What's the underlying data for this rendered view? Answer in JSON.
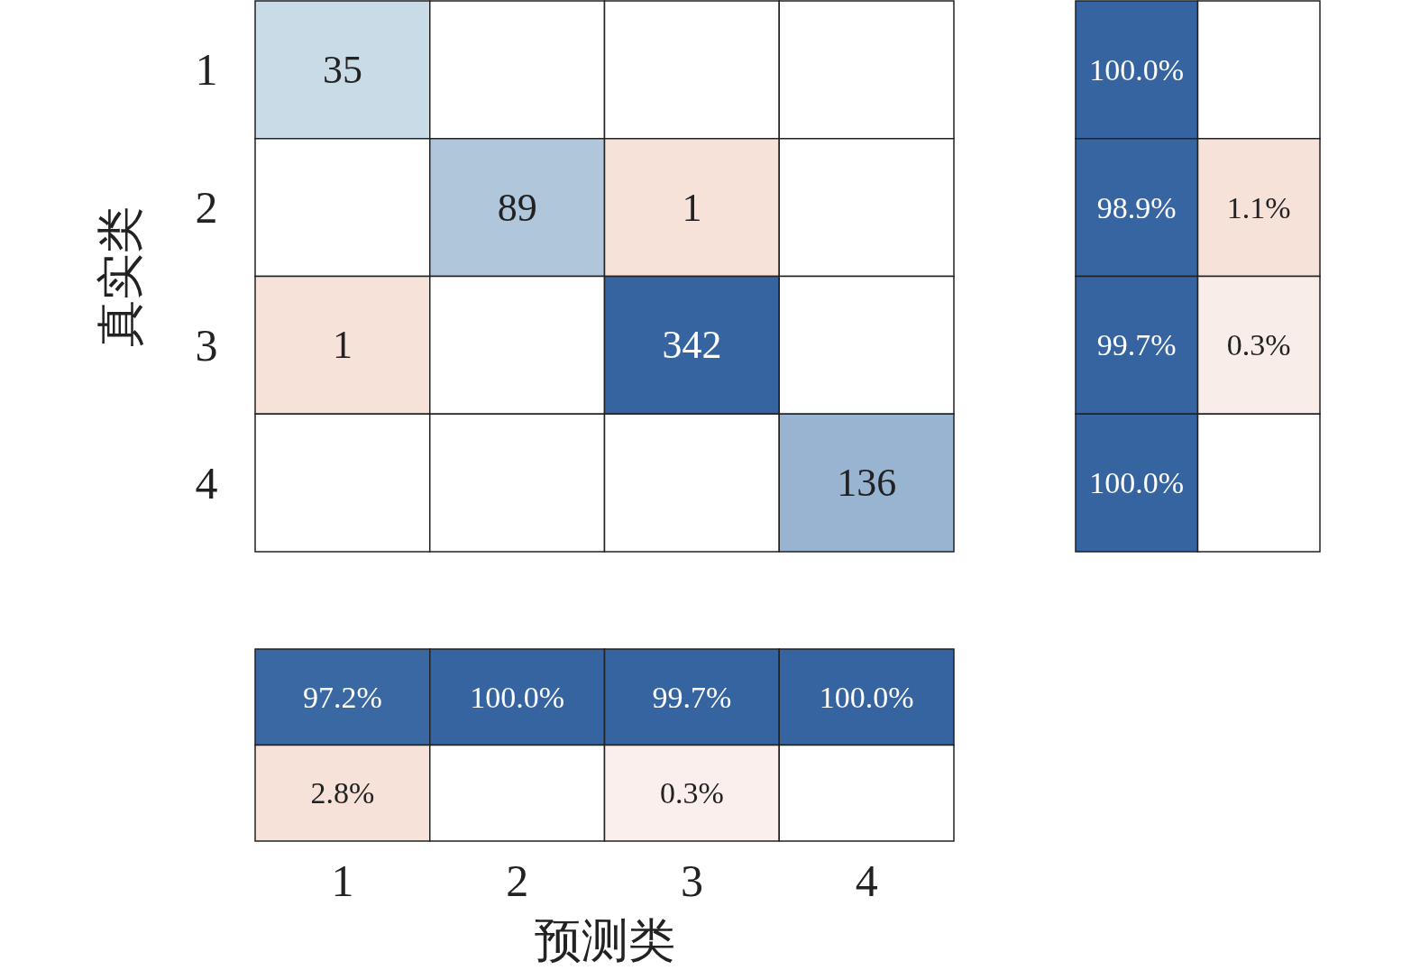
{
  "chart_data": [
    {
      "type": "heatmap",
      "ylabel": "真实类",
      "categories": [
        null,
        null,
        null,
        null
      ],
      "y_categories": [
        "1",
        "2",
        "3",
        "4"
      ],
      "tick_labels": "y",
      "data_labels": true,
      "cells": [
        [
          35,
          null,
          null,
          null
        ],
        [
          null,
          89,
          1,
          null
        ],
        [
          1,
          null,
          342,
          null
        ],
        [
          null,
          null,
          null,
          136
        ]
      ]
    },
    {
      "type": "heatmap",
      "categories": [
        null,
        null
      ],
      "y_categories": [
        null,
        null,
        null,
        null
      ],
      "tick_labels": false,
      "cells": [
        [
          100.0,
          null
        ],
        [
          98.9,
          1.1
        ],
        [
          99.7,
          0.3
        ],
        [
          100.0,
          null
        ]
      ],
      "cell_labels": [
        [
          "100.0%",
          null
        ],
        [
          "98.9%",
          "1.1%"
        ],
        [
          "99.7%",
          "0.3%"
        ],
        [
          "100.0%",
          null
        ]
      ]
    },
    {
      "type": "heatmap",
      "xlabel": "预测类",
      "categories": [
        "1",
        "2",
        "3",
        "4"
      ],
      "y_categories": [
        null,
        null
      ],
      "tick_labels": "x",
      "cells": [
        [
          97.2,
          100.0,
          99.7,
          100.0
        ],
        [
          2.8,
          null,
          0.3,
          null
        ]
      ],
      "cell_labels": [
        [
          "97.2%",
          "100.0%",
          "99.7%",
          "100.0%"
        ],
        [
          "2.8%",
          null,
          "0.3%",
          null
        ]
      ]
    }
  ]
}
